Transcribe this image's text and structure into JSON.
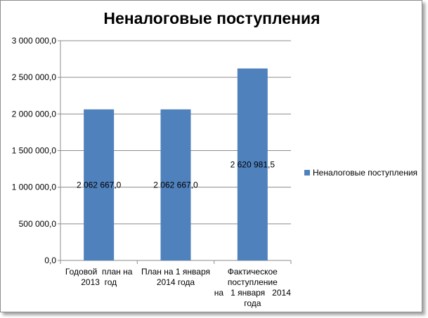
{
  "chart_data": {
    "type": "bar",
    "title": "Неналоговые поступления",
    "categories": [
      [
        "Годовой  план на",
        "2013  год"
      ],
      [
        "План на 1 января",
        "2014 года"
      ],
      [
        "Фактическое",
        "поступление",
        "на   1 января   2014",
        "года"
      ]
    ],
    "series": [
      {
        "name": "Неналоговые поступления",
        "color": "#4f81bd",
        "values": [
          2062667.0,
          2062667.0,
          2620981.5
        ],
        "labels": [
          "2 062 667,0",
          "2 062 667,0",
          "2 620 981,5"
        ]
      }
    ],
    "ylim": [
      0,
      3000000
    ],
    "yticks": [
      0,
      500000,
      1000000,
      1500000,
      2000000,
      2500000,
      3000000
    ],
    "ytick_labels": [
      "0,0",
      "500 000,0",
      "1 000 000,0",
      "1 500 000,0",
      "2 000 000,0",
      "2 500 000,0",
      "3 000 000,0"
    ],
    "grid": true,
    "legend": "right"
  }
}
